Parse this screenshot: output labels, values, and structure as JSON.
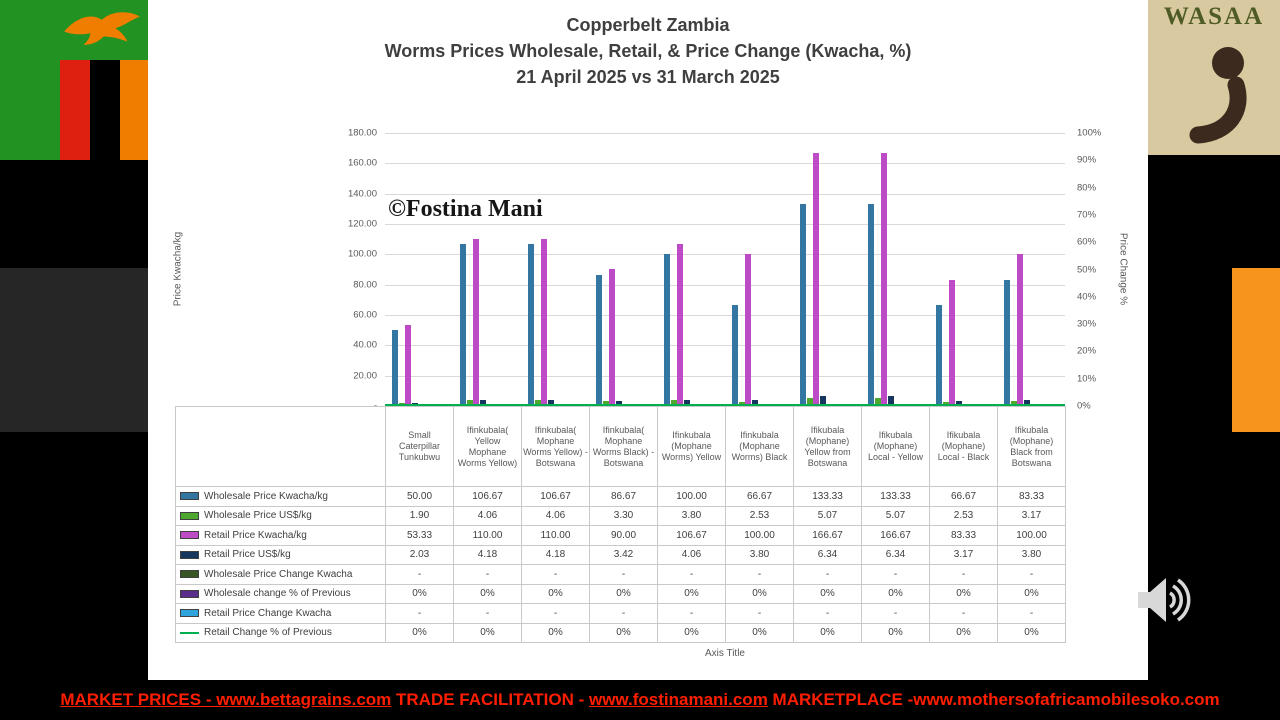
{
  "colors": {
    "flag_green": "#229322",
    "flag_red": "#DE2010",
    "flag_orange": "#EF7D00",
    "accent_orange": "#F7941E",
    "accent_gray": "#262626",
    "logo_tan": "#D8C9A0",
    "logo_brown": "#3B2A1D",
    "logo_green": "#4E5B26",
    "footer_red": "#FF1E00",
    "title_text": "#3F3F3F",
    "axis_text": "#595959",
    "grid_line": "#D9D9D9",
    "table_border": "#C9C9C9",
    "table_text": "#404040",
    "speaker_gray": "#D8D8D8"
  },
  "logo": {
    "text": "WASAA"
  },
  "chart": {
    "title_lines": [
      "Copperbelt Zambia",
      "Worms Prices Wholesale, Retail, & Price Change (Kwacha, %)",
      "21 April 2025 vs 31 March 2025"
    ],
    "watermark": "©Fostina Mani",
    "left_axis_title": "Price Kwacha/kg",
    "right_axis_title": "Price Change %",
    "x_axis_title": "Axis Title"
  },
  "chart_data": {
    "type": "bar",
    "title": "Copperbelt Zambia Worms Prices Wholesale, Retail, & Price Change (Kwacha, %) 21 April 2025 vs 31 March 2025",
    "categories": [
      "Small Caterpillar Tunkubwu",
      "Ifinkubala( Yellow Mophane Worms Yellow)",
      "Ifinkubala( Mophane Worms Yellow) - Botswana",
      "Ifinkubala( Mophane Worms Black) - Botswana",
      "Ifinkubala (Mophane Worms) Yellow",
      "Ifinkubala (Mophane Worms) Black",
      "Ifikubala (Mophane) Yellow from Botswana",
      "Ifikubala (Mophane) Local - Yellow",
      "Ifikubala (Mophane) Local - Black",
      "Ifikubala (Mophane) Black from Botswana"
    ],
    "left_axis": {
      "label": "Price Kwacha/kg",
      "min": 0,
      "max": 180,
      "step": 20,
      "tick_labels": [
        "-",
        "20.00",
        "40.00",
        "60.00",
        "80.00",
        "100.00",
        "120.00",
        "140.00",
        "160.00",
        "180.00"
      ]
    },
    "right_axis": {
      "label": "Price Change %",
      "min": 0,
      "max": 1,
      "step": 0.1,
      "tick_labels": [
        "0%",
        "10%",
        "20%",
        "30%",
        "40%",
        "50%",
        "60%",
        "70%",
        "80%",
        "90%",
        "100%"
      ]
    },
    "x_axis_label": "Axis Title",
    "grid": true,
    "legend_position": "table-left",
    "series": [
      {
        "name": "Wholesale Price Kwacha/kg",
        "kind": "bar",
        "axis": "left",
        "color": "#3476A2",
        "values": [
          50,
          106.67,
          106.67,
          86.67,
          100,
          66.67,
          133.33,
          133.33,
          66.67,
          83.33
        ],
        "display": [
          "50.00",
          "106.67",
          "106.67",
          "86.67",
          "100.00",
          "66.67",
          "133.33",
          "133.33",
          "66.67",
          "83.33"
        ]
      },
      {
        "name": "Wholesale Price US$/kg",
        "kind": "bar",
        "axis": "left",
        "color": "#4EA72E",
        "values": [
          1.9,
          4.06,
          4.06,
          3.3,
          3.8,
          2.53,
          5.07,
          5.07,
          2.53,
          3.17
        ],
        "display": [
          "1.90",
          "4.06",
          "4.06",
          "3.30",
          "3.80",
          "2.53",
          "5.07",
          "5.07",
          "2.53",
          "3.17"
        ]
      },
      {
        "name": "Retail Price Kwacha/kg",
        "kind": "bar",
        "axis": "left",
        "color": "#BE4BC6",
        "values": [
          53.33,
          110,
          110,
          90,
          106.67,
          100,
          166.67,
          166.67,
          83.33,
          100
        ],
        "display": [
          "53.33",
          "110.00",
          "110.00",
          "90.00",
          "106.67",
          "100.00",
          "166.67",
          "166.67",
          "83.33",
          "100.00"
        ]
      },
      {
        "name": "Retail Price US$/kg",
        "kind": "bar",
        "axis": "left",
        "color": "#17365D",
        "values": [
          2.03,
          4.18,
          4.18,
          3.42,
          4.06,
          3.8,
          6.34,
          6.34,
          3.17,
          3.8
        ],
        "display": [
          "2.03",
          "4.18",
          "4.18",
          "3.42",
          "4.06",
          "3.80",
          "6.34",
          "6.34",
          "3.17",
          "3.80"
        ]
      },
      {
        "name": "Wholesale Price Change Kwacha",
        "kind": "bar",
        "axis": "left",
        "color": "#375623",
        "values": [
          0,
          0,
          0,
          0,
          0,
          0,
          0,
          0,
          0,
          0
        ],
        "display": [
          "-",
          "-",
          "-",
          "-",
          "-",
          "-",
          "-",
          "-",
          "-",
          "-"
        ]
      },
      {
        "name": "Wholesale change  % of Previous",
        "kind": "bar",
        "axis": "right",
        "color": "#5A2D8A",
        "values": [
          0,
          0,
          0,
          0,
          0,
          0,
          0,
          0,
          0,
          0
        ],
        "display": [
          "0%",
          "0%",
          "0%",
          "0%",
          "0%",
          "0%",
          "0%",
          "0%",
          "0%",
          "0%"
        ]
      },
      {
        "name": "Retail Price Change Kwacha",
        "kind": "bar",
        "axis": "left",
        "color": "#2FA3DC",
        "values": [
          0,
          0,
          0,
          0,
          0,
          0,
          0,
          0,
          0,
          0
        ],
        "display": [
          "-",
          "-",
          "-",
          "-",
          "-",
          "-",
          "-",
          "-",
          "-",
          "-"
        ]
      },
      {
        "name": "Retail Change % of Previous",
        "kind": "line",
        "axis": "right",
        "color": "#00B050",
        "values": [
          0,
          0,
          0,
          0,
          0,
          0,
          0,
          0,
          0,
          0
        ],
        "display": [
          "0%",
          "0%",
          "0%",
          "0%",
          "0%",
          "0%",
          "0%",
          "0%",
          "0%",
          "0%"
        ]
      }
    ]
  },
  "footer": {
    "seg1": "MARKET PRICES - www.bettagrains.com",
    "seg2": " TRADE FACILITATION - ",
    "seg3": "www.fostinamani.com",
    "seg4": "  MARKETPLACE -www.mothersofafricamobilesoko.com"
  }
}
